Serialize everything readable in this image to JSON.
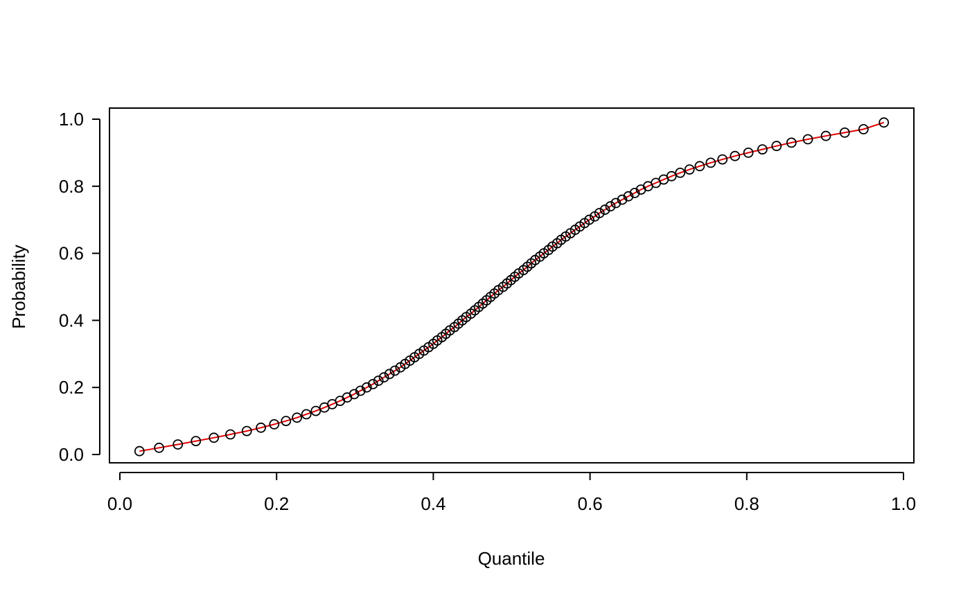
{
  "chart_data": {
    "type": "scatter",
    "title": "",
    "xlabel": "Quantile",
    "ylabel": "Probability",
    "xlim": [
      0.0,
      1.0
    ],
    "ylim": [
      0.0,
      1.0
    ],
    "x_ticks": [
      "0.0",
      "0.2",
      "0.4",
      "0.6",
      "0.8",
      "1.0"
    ],
    "y_ticks": [
      "0.0",
      "0.2",
      "0.4",
      "0.6",
      "0.8",
      "1.0"
    ],
    "grid": false,
    "legend": "none",
    "colors": {
      "points": "#000000",
      "line": "#e00000",
      "axes": "#000000"
    },
    "points": {
      "x": [
        0.025,
        0.05,
        0.074,
        0.097,
        0.12,
        0.141,
        0.162,
        0.18,
        0.197,
        0.212,
        0.226,
        0.238,
        0.25,
        0.261,
        0.271,
        0.281,
        0.29,
        0.299,
        0.307,
        0.315,
        0.323,
        0.33,
        0.337,
        0.344,
        0.351,
        0.358,
        0.364,
        0.37,
        0.376,
        0.382,
        0.388,
        0.394,
        0.4,
        0.405,
        0.411,
        0.416,
        0.421,
        0.427,
        0.432,
        0.437,
        0.442,
        0.448,
        0.453,
        0.458,
        0.463,
        0.468,
        0.473,
        0.478,
        0.483,
        0.489,
        0.494,
        0.499,
        0.504,
        0.509,
        0.515,
        0.52,
        0.525,
        0.53,
        0.536,
        0.541,
        0.547,
        0.552,
        0.558,
        0.563,
        0.569,
        0.575,
        0.581,
        0.587,
        0.593,
        0.599,
        0.606,
        0.612,
        0.619,
        0.626,
        0.633,
        0.641,
        0.649,
        0.657,
        0.665,
        0.674,
        0.684,
        0.694,
        0.704,
        0.715,
        0.727,
        0.74,
        0.754,
        0.769,
        0.785,
        0.802,
        0.82,
        0.838,
        0.857,
        0.878,
        0.901,
        0.925,
        0.949,
        0.975
      ],
      "y": [
        0.01,
        0.02,
        0.03,
        0.04,
        0.05,
        0.06,
        0.07,
        0.08,
        0.09,
        0.1,
        0.11,
        0.12,
        0.13,
        0.14,
        0.15,
        0.16,
        0.17,
        0.18,
        0.19,
        0.2,
        0.21,
        0.22,
        0.23,
        0.24,
        0.25,
        0.26,
        0.27,
        0.28,
        0.29,
        0.3,
        0.31,
        0.32,
        0.33,
        0.34,
        0.35,
        0.36,
        0.37,
        0.38,
        0.39,
        0.4,
        0.41,
        0.42,
        0.43,
        0.44,
        0.45,
        0.46,
        0.47,
        0.48,
        0.49,
        0.5,
        0.51,
        0.52,
        0.53,
        0.54,
        0.55,
        0.56,
        0.57,
        0.58,
        0.59,
        0.6,
        0.61,
        0.62,
        0.63,
        0.64,
        0.65,
        0.66,
        0.67,
        0.68,
        0.69,
        0.7,
        0.71,
        0.72,
        0.73,
        0.74,
        0.75,
        0.76,
        0.77,
        0.78,
        0.79,
        0.8,
        0.81,
        0.82,
        0.83,
        0.84,
        0.85,
        0.86,
        0.87,
        0.88,
        0.89,
        0.9,
        0.91,
        0.92,
        0.93,
        0.94,
        0.95,
        0.96,
        0.97,
        0.99
      ]
    }
  }
}
